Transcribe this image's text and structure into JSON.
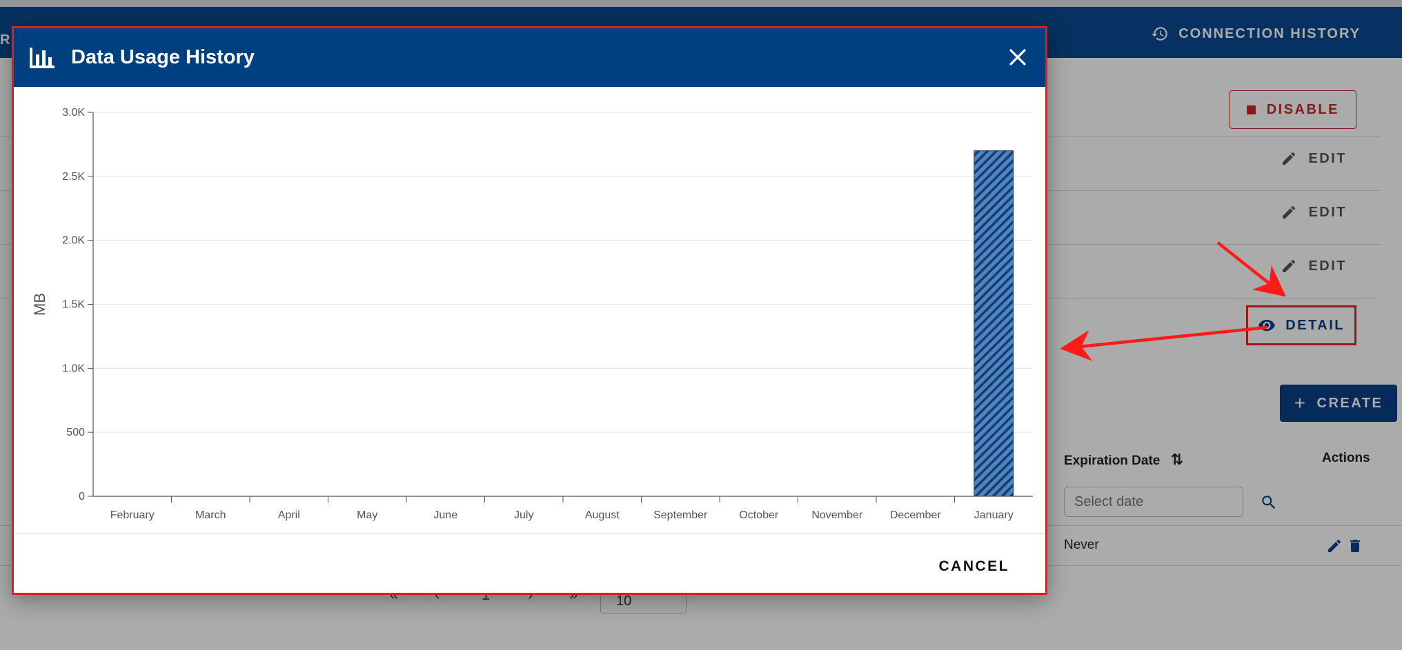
{
  "background": {
    "appbar_fragment": "RE",
    "appbar_item": "CONNECTION HISTORY",
    "disable_label": "DISABLE",
    "edit_label": "EDIT",
    "detail_label": "DETAIL",
    "create_label": "CREATE",
    "table": {
      "columns": [
        "Expiration Date",
        "Actions"
      ],
      "date_placeholder": "Select date",
      "row_expiration": "Never"
    },
    "page_size": "10",
    "page_number": "1"
  },
  "dialog": {
    "title": "Data Usage History",
    "cancel_label": "CANCEL",
    "close_label": "×"
  },
  "chart_data": {
    "type": "bar",
    "title": "",
    "xlabel": "",
    "ylabel": "MB",
    "ylim": [
      0,
      3000
    ],
    "ytick_labels": [
      "0",
      "500",
      "1.0K",
      "1.5K",
      "2.0K",
      "2.5K",
      "3.0K"
    ],
    "categories": [
      "February",
      "March",
      "April",
      "May",
      "June",
      "July",
      "August",
      "September",
      "October",
      "November",
      "December",
      "January"
    ],
    "values": [
      0,
      0,
      0,
      0,
      0,
      0,
      0,
      0,
      0,
      0,
      0,
      2700
    ],
    "grid": true,
    "bar_color": "#4a86c5",
    "bar_pattern": "diagonal-stripes"
  },
  "colors": {
    "header_bg": "#004080",
    "highlight_border": "#e41b1b",
    "annotation_arrow": "#ff1a1a",
    "disable_red": "#c62828"
  }
}
